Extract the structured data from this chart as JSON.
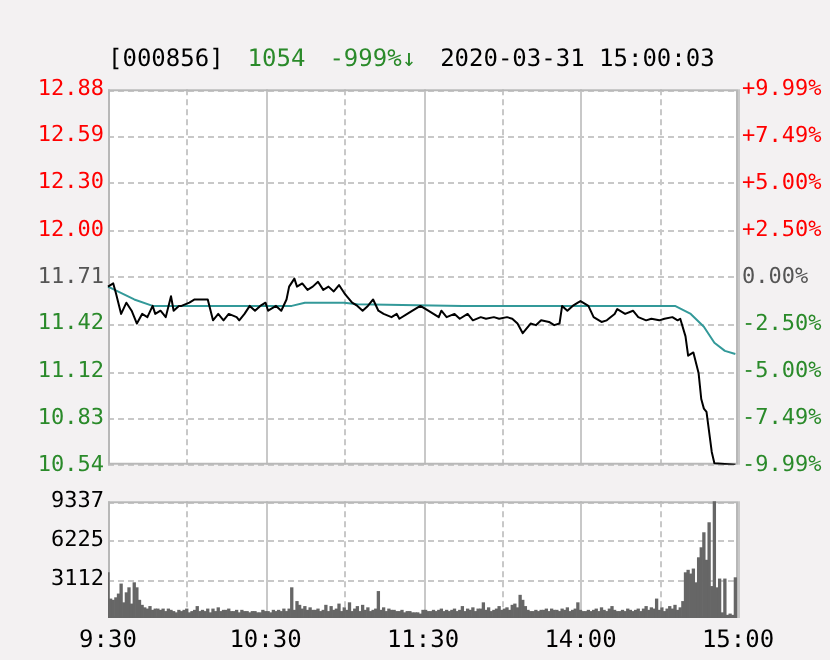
{
  "chart_data": [
    {
      "type": "line",
      "title": "[000856]",
      "annotations": [
        "1054",
        "-999%↓",
        "2020-03-31 15:00:03"
      ],
      "categories": [
        null,
        null,
        null,
        null,
        null,
        null,
        null,
        null,
        null,
        null,
        null,
        null,
        null,
        null,
        null,
        null,
        null,
        null,
        null,
        null,
        null,
        null,
        null,
        null,
        null,
        null,
        null,
        null,
        null,
        null,
        null,
        null,
        null,
        null,
        null,
        null,
        null,
        null,
        null,
        null,
        null,
        null,
        null,
        null,
        null,
        null,
        null,
        null,
        null,
        null,
        null,
        null,
        null,
        null,
        null,
        null,
        null,
        null,
        null,
        null,
        null,
        null,
        null,
        null,
        null,
        null,
        null,
        null,
        null,
        null,
        null,
        null,
        null,
        null,
        null,
        null,
        null,
        null,
        null,
        null,
        null,
        null,
        null,
        null,
        null,
        null,
        null,
        null,
        null,
        null,
        null,
        null,
        null,
        null,
        null,
        null,
        null,
        null,
        null,
        null,
        null,
        null,
        null,
        null,
        null,
        null,
        null,
        null,
        null,
        null,
        null,
        null,
        null,
        null,
        null,
        null,
        null,
        null,
        null,
        null,
        null,
        null,
        null,
        null,
        null,
        null,
        null,
        null,
        null,
        null,
        null,
        null,
        null,
        null,
        null,
        null,
        null,
        null,
        null,
        null,
        null,
        null,
        null,
        null,
        null,
        null,
        null,
        null,
        null,
        null,
        null,
        null,
        null,
        null,
        null,
        null,
        null,
        null,
        null,
        null,
        null,
        null,
        null,
        null,
        null,
        null,
        null,
        null,
        null,
        null,
        null,
        null,
        null,
        null,
        null,
        null,
        null,
        null,
        null,
        null,
        null,
        null,
        null,
        null,
        null,
        null,
        null,
        null,
        null,
        null,
        null,
        null,
        null,
        null,
        null,
        null,
        null,
        null,
        null,
        null,
        null,
        null,
        null,
        null,
        null,
        null,
        null,
        null,
        null,
        null,
        null,
        null,
        null,
        null,
        null,
        null,
        null,
        null,
        null,
        null,
        null,
        null,
        null,
        null,
        null,
        null,
        null,
        null,
        null,
        null,
        null,
        null,
        null,
        null,
        null,
        null,
        null,
        null,
        null,
        null,
        null
      ],
      "ylim": [
        10.54,
        12.88
      ],
      "yticks": [
        12.88,
        12.59,
        {
          "value": 12.3,
          "label": "12.30"
        },
        {
          "value": 12,
          "label": "12.00"
        },
        11.71,
        11.42,
        11.12,
        10.83,
        10.54
      ],
      "y2lim": [
        -9.99,
        9.99
      ],
      "y2ticks": [
        {
          "value": 9.99,
          "label": "+9.99%"
        },
        {
          "value": 7.49,
          "label": "+7.49%"
        },
        {
          "value": 5,
          "label": "+5.00%"
        },
        {
          "value": 2.5,
          "label": "+2.50%"
        },
        {
          "value": 0,
          "label": "0.00%"
        },
        {
          "value": -2.5,
          "label": "-2.50%"
        },
        {
          "value": -5,
          "label": "-5.00%"
        },
        {
          "value": -7.49,
          "label": "-7.49%"
        },
        {
          "value": -9.99,
          "label": "-9.99%"
        }
      ],
      "tick_labels": "y",
      "grid": true,
      "series": [
        {
          "color": "#000000",
          "values": [
            11.65,
            null,
            11.67,
            11.61,
            null,
            11.48,
            null,
            11.55,
            null,
            11.5,
            null,
            11.42,
            null,
            11.48,
            null,
            11.46,
            null,
            11.53,
            11.48,
            null,
            11.5,
            null,
            11.46,
            null,
            11.59,
            11.5,
            null,
            11.53,
            11.53,
            null,
            null,
            11.55,
            null,
            11.57,
            null,
            null,
            11.57,
            null,
            11.57,
            null,
            11.44,
            null,
            11.48,
            null,
            11.44,
            null,
            11.48,
            null,
            null,
            11.46,
            11.44,
            null,
            11.48,
            null,
            11.53,
            null,
            11.5,
            null,
            11.53,
            null,
            11.55,
            11.5,
            null,
            null,
            11.53,
            null,
            11.5,
            null,
            11.57,
            11.65,
            null,
            11.7,
            11.65,
            null,
            11.67,
            null,
            11.63,
            null,
            11.65,
            null,
            11.68,
            null,
            11.63,
            null,
            11.65,
            null,
            11.62,
            null,
            11.66,
            null,
            11.61,
            11.59,
            null,
            11.55,
            null,
            11.53,
            null,
            11.5,
            null,
            11.53,
            null,
            11.57,
            null,
            11.5,
            null,
            11.48,
            null,
            null,
            11.46,
            null,
            11.48,
            11.45,
            null,
            null,
            11.48,
            null,
            11.5,
            null,
            null,
            11.53,
            null,
            null,
            11.5,
            null,
            11.48,
            null,
            11.46,
            11.5,
            null,
            11.46,
            null,
            null,
            11.48,
            null,
            11.45,
            null,
            null,
            11.48,
            null,
            11.44,
            null,
            null,
            11.46,
            null,
            11.45,
            null,
            null,
            11.46,
            null,
            11.45,
            null,
            null,
            11.46,
            null,
            11.45,
            null,
            11.42,
            null,
            11.36,
            null,
            null,
            11.42,
            null,
            11.41,
            null,
            11.44,
            null,
            null,
            11.43,
            null,
            11.41,
            null,
            11.42,
            11.53,
            null,
            11.5,
            null,
            11.53,
            null,
            11.55,
            11.56,
            null,
            null,
            11.53,
            null,
            11.46,
            null,
            null,
            11.43,
            null,
            11.44,
            null,
            null,
            11.48,
            11.51,
            null,
            null,
            11.48,
            null,
            null,
            11.5,
            null,
            11.46,
            null,
            null,
            11.44,
            null,
            11.45,
            null,
            null,
            11.44,
            null,
            11.45,
            null,
            null,
            11.46,
            null,
            11.44,
            11.45,
            null,
            11.34,
            11.22,
            null,
            11.24,
            null,
            11.11,
            10.95,
            10.89,
            10.87,
            null,
            10.62,
            10.55,
            null,
            null,
            null,
            null,
            null,
            null,
            null,
            10.54,
            null
          ]
        },
        {
          "color": "#339999",
          "values": [
            11.65,
            null,
            null,
            null,
            null,
            null,
            null,
            null,
            null,
            null,
            11.57,
            null,
            null,
            null,
            null,
            null,
            null,
            11.53,
            null,
            null,
            null,
            null,
            null,
            null,
            null,
            null,
            null,
            null,
            null,
            null,
            null,
            null,
            null,
            null,
            null,
            11.53,
            null,
            null,
            null,
            null,
            null,
            null,
            null,
            null,
            null,
            null,
            null,
            null,
            null,
            null,
            null,
            null,
            null,
            null,
            null,
            null,
            null,
            null,
            null,
            null,
            null,
            null,
            null,
            null,
            null,
            null,
            null,
            null,
            null,
            null,
            11.53,
            null,
            null,
            null,
            null,
            11.55,
            null,
            null,
            null,
            null,
            null,
            null,
            null,
            null,
            null,
            null,
            null,
            null,
            null,
            null,
            11.55,
            null,
            null,
            null,
            null,
            11.54,
            null,
            null,
            null,
            null,
            null,
            null,
            null,
            null,
            null,
            null,
            null,
            null,
            null,
            null,
            null,
            null,
            null,
            null,
            null,
            null,
            null,
            null,
            null,
            null,
            null,
            null,
            null,
            null,
            null,
            null,
            null,
            null,
            null,
            null,
            null,
            null,
            null,
            null,
            null,
            11.53,
            null,
            null,
            null,
            null,
            null,
            null,
            null,
            null,
            null,
            null,
            null,
            null,
            null,
            null,
            null,
            null,
            null,
            null,
            null,
            null,
            null,
            null,
            null,
            null,
            null,
            null,
            null,
            null,
            null,
            null,
            null,
            null,
            null,
            null,
            null,
            null,
            null,
            null,
            null,
            null,
            null,
            null,
            null,
            null,
            null,
            null,
            null,
            null,
            null,
            null,
            null,
            null,
            null,
            null,
            null,
            null,
            null,
            null,
            null,
            null,
            null,
            null,
            null,
            null,
            null,
            null,
            null,
            null,
            null,
            null,
            null,
            null,
            null,
            null,
            null,
            null,
            null,
            null,
            null,
            null,
            11.53,
            null,
            null,
            null,
            null,
            null,
            11.48,
            null,
            null,
            null,
            null,
            11.4,
            null,
            null,
            null,
            11.3,
            null,
            null,
            null,
            11.25,
            null,
            null,
            null,
            11.23,
            null
          ]
        }
      ]
    },
    {
      "type": "bar",
      "color": "#666666",
      "categories": [
        "9:30",
        null,
        null,
        null,
        null,
        null,
        null,
        null,
        null,
        null,
        null,
        null,
        null,
        null,
        null,
        null,
        null,
        null,
        null,
        null,
        null,
        null,
        null,
        null,
        null,
        null,
        null,
        null,
        null,
        null,
        null,
        null,
        null,
        null,
        null,
        null,
        null,
        null,
        null,
        null,
        null,
        null,
        null,
        null,
        null,
        null,
        null,
        null,
        null,
        null,
        null,
        null,
        null,
        null,
        null,
        null,
        null,
        null,
        null,
        null,
        "10:30",
        null,
        null,
        null,
        null,
        null,
        null,
        null,
        null,
        null,
        null,
        null,
        null,
        null,
        null,
        null,
        null,
        null,
        null,
        null,
        null,
        null,
        null,
        null,
        null,
        null,
        null,
        null,
        null,
        null,
        null,
        null,
        null,
        null,
        null,
        null,
        null,
        null,
        null,
        null,
        null,
        null,
        null,
        null,
        null,
        null,
        null,
        null,
        null,
        null,
        null,
        null,
        null,
        null,
        null,
        null,
        null,
        null,
        null,
        null,
        "11:30",
        null,
        null,
        null,
        null,
        null,
        null,
        null,
        null,
        null,
        null,
        null,
        null,
        null,
        null,
        null,
        null,
        null,
        null,
        null,
        null,
        null,
        null,
        null,
        null,
        null,
        null,
        null,
        null,
        null,
        null,
        null,
        null,
        null,
        null,
        null,
        null,
        null,
        null,
        null,
        null,
        null,
        null,
        null,
        null,
        null,
        null,
        null,
        null,
        null,
        null,
        null,
        null,
        null,
        null,
        null,
        null,
        null,
        null,
        null,
        "14:00",
        null,
        null,
        null,
        null,
        null,
        null,
        null,
        null,
        null,
        null,
        null,
        null,
        null,
        null,
        null,
        null,
        null,
        null,
        null,
        null,
        null,
        null,
        null,
        null,
        null,
        null,
        null,
        null,
        null,
        null,
        null,
        null,
        null,
        null,
        null,
        null,
        null,
        null,
        null,
        null,
        null,
        null,
        null,
        null,
        null,
        null,
        null,
        null,
        null,
        null,
        null,
        null,
        null,
        null,
        null,
        null,
        null,
        null,
        null,
        "15:00"
      ],
      "values": [
        3600,
        1500,
        1400,
        1600,
        1900,
        2700,
        1200,
        2000,
        2400,
        1100,
        2800,
        2400,
        1400,
        1000,
        800,
        700,
        900,
        600,
        700,
        700,
        600,
        700,
        500,
        700,
        600,
        500,
        400,
        600,
        500,
        600,
        700,
        400,
        500,
        600,
        900,
        500,
        600,
        500,
        700,
        400,
        700,
        500,
        800,
        500,
        600,
        600,
        700,
        500,
        500,
        600,
        400,
        600,
        500,
        500,
        400,
        500,
        500,
        400,
        400,
        600,
        500,
        500,
        400,
        600,
        500,
        600,
        500,
        700,
        500,
        700,
        2400,
        600,
        1300,
        1000,
        700,
        900,
        600,
        800,
        600,
        600,
        700,
        500,
        600,
        1000,
        500,
        900,
        600,
        700,
        1100,
        500,
        800,
        600,
        1200,
        500,
        700,
        900,
        500,
        1000,
        600,
        800,
        500,
        600,
        700,
        2100,
        600,
        800,
        500,
        700,
        600,
        600,
        500,
        500,
        600,
        400,
        500,
        500,
        400,
        400,
        400,
        300,
        600,
        600,
        500,
        500,
        600,
        500,
        600,
        700,
        500,
        600,
        500,
        600,
        700,
        500,
        600,
        900,
        500,
        700,
        600,
        800,
        500,
        700,
        700,
        1200,
        600,
        800,
        500,
        600,
        700,
        900,
        600,
        700,
        800,
        600,
        1000,
        1100,
        800,
        1800,
        1400,
        900,
        600,
        500,
        500,
        600,
        500,
        600,
        600,
        700,
        500,
        700,
        600,
        600,
        500,
        700,
        600,
        800,
        500,
        600,
        700,
        1200,
        600,
        500,
        500,
        600,
        500,
        600,
        700,
        500,
        800,
        600,
        500,
        700,
        900,
        600,
        500,
        500,
        600,
        500,
        700,
        600,
        500,
        600,
        700,
        500,
        700,
        900,
        600,
        800,
        700,
        1500,
        600,
        800,
        500,
        700,
        900,
        700,
        1000,
        600,
        800,
        1300,
        3600,
        3800,
        3500,
        3900,
        2800,
        4800,
        5600,
        6800,
        4600,
        7600,
        2500,
        9300,
        2400,
        3100,
        400,
        3100,
        200,
        300,
        200,
        3200,
        null
      ],
      "ylim": [
        0,
        9337
      ],
      "yticks": [
        3112,
        6225,
        9337
      ],
      "grid": true
    }
  ]
}
